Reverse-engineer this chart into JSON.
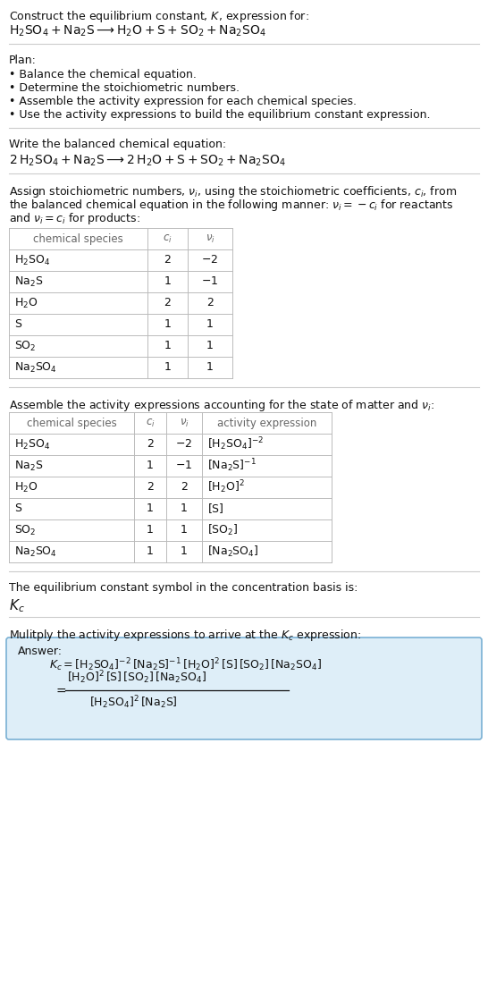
{
  "title_line1": "Construct the equilibrium constant, K, expression for:",
  "bg_color": "#ffffff",
  "text_color": "#111111",
  "gray_text": "#666666",
  "table_border_color": "#bbbbbb",
  "answer_box_color": "#deeef8",
  "answer_box_border": "#7ab0d4",
  "plan_items": [
    "• Balance the chemical equation.",
    "• Determine the stoichiometric numbers.",
    "• Assemble the activity expression for each chemical species.",
    "• Use the activity expressions to build the equilibrium constant expression."
  ],
  "table1_rows": [
    [
      "$\\mathrm{H_2SO_4}$",
      "2",
      "$-2$"
    ],
    [
      "$\\mathrm{Na_2S}$",
      "1",
      "$-1$"
    ],
    [
      "$\\mathrm{H_2O}$",
      "2",
      "2"
    ],
    [
      "$\\mathrm{S}$",
      "1",
      "1"
    ],
    [
      "$\\mathrm{SO_2}$",
      "1",
      "1"
    ],
    [
      "$\\mathrm{Na_2SO_4}$",
      "1",
      "1"
    ]
  ],
  "table2_rows": [
    [
      "$\\mathrm{H_2SO_4}$",
      "2",
      "$-2$",
      "$[\\mathrm{H_2SO_4}]^{-2}$"
    ],
    [
      "$\\mathrm{Na_2S}$",
      "1",
      "$-1$",
      "$[\\mathrm{Na_2S}]^{-1}$"
    ],
    [
      "$\\mathrm{H_2O}$",
      "2",
      "2",
      "$[\\mathrm{H_2O}]^{2}$"
    ],
    [
      "$\\mathrm{S}$",
      "1",
      "1",
      "$[\\mathrm{S}]$"
    ],
    [
      "$\\mathrm{SO_2}$",
      "1",
      "1",
      "$[\\mathrm{SO_2}]$"
    ],
    [
      "$\\mathrm{Na_2SO_4}$",
      "1",
      "1",
      "$[\\mathrm{Na_2SO_4}]$"
    ]
  ]
}
